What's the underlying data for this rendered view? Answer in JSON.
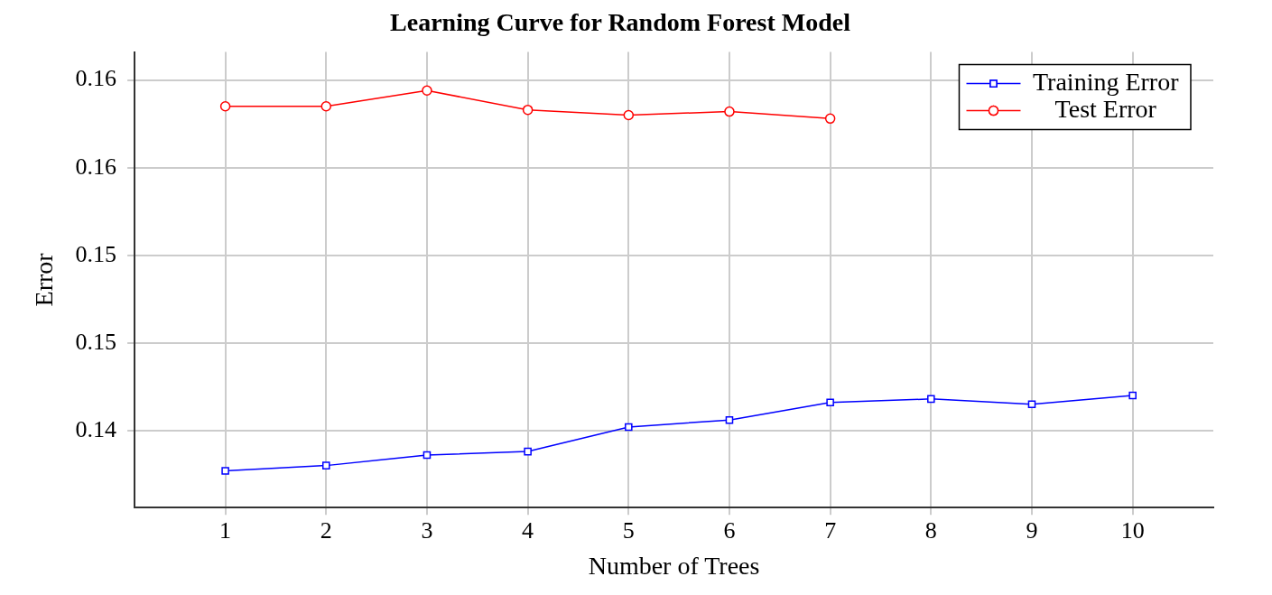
{
  "chart_data": {
    "type": "line",
    "title": "Learning Curve for Random Forest Model",
    "xlabel": "Number of Trees",
    "ylabel": "Error",
    "x": [
      1,
      2,
      3,
      4,
      5,
      6,
      7,
      8,
      9,
      10
    ],
    "xlim": [
      0.1,
      10.8
    ],
    "xticks": [
      1,
      2,
      3,
      4,
      5,
      6,
      7,
      8,
      9,
      10
    ],
    "ylim": [
      0.1356,
      0.1616
    ],
    "yticks": [
      {
        "value": 0.14,
        "label": "0.14"
      },
      {
        "value": 0.145,
        "label": "0.15"
      },
      {
        "value": 0.15,
        "label": "0.15"
      },
      {
        "value": 0.155,
        "label": "0.16"
      },
      {
        "value": 0.16,
        "label": "0.16"
      }
    ],
    "series": [
      {
        "name": "Training Error",
        "color": "#0000ff",
        "marker": "square",
        "values": [
          0.1377,
          0.138,
          0.1386,
          0.1388,
          0.1402,
          0.1406,
          0.1416,
          0.1418,
          0.1415,
          0.142
        ]
      },
      {
        "name": "Test Error",
        "color": "#ff0000",
        "marker": "circle",
        "values": [
          0.1585,
          0.1585,
          0.1594,
          0.1583,
          0.158,
          0.1582,
          0.1578,
          null,
          null,
          null
        ]
      }
    ],
    "grid": true,
    "legend": "top right",
    "line_style": "solid"
  }
}
